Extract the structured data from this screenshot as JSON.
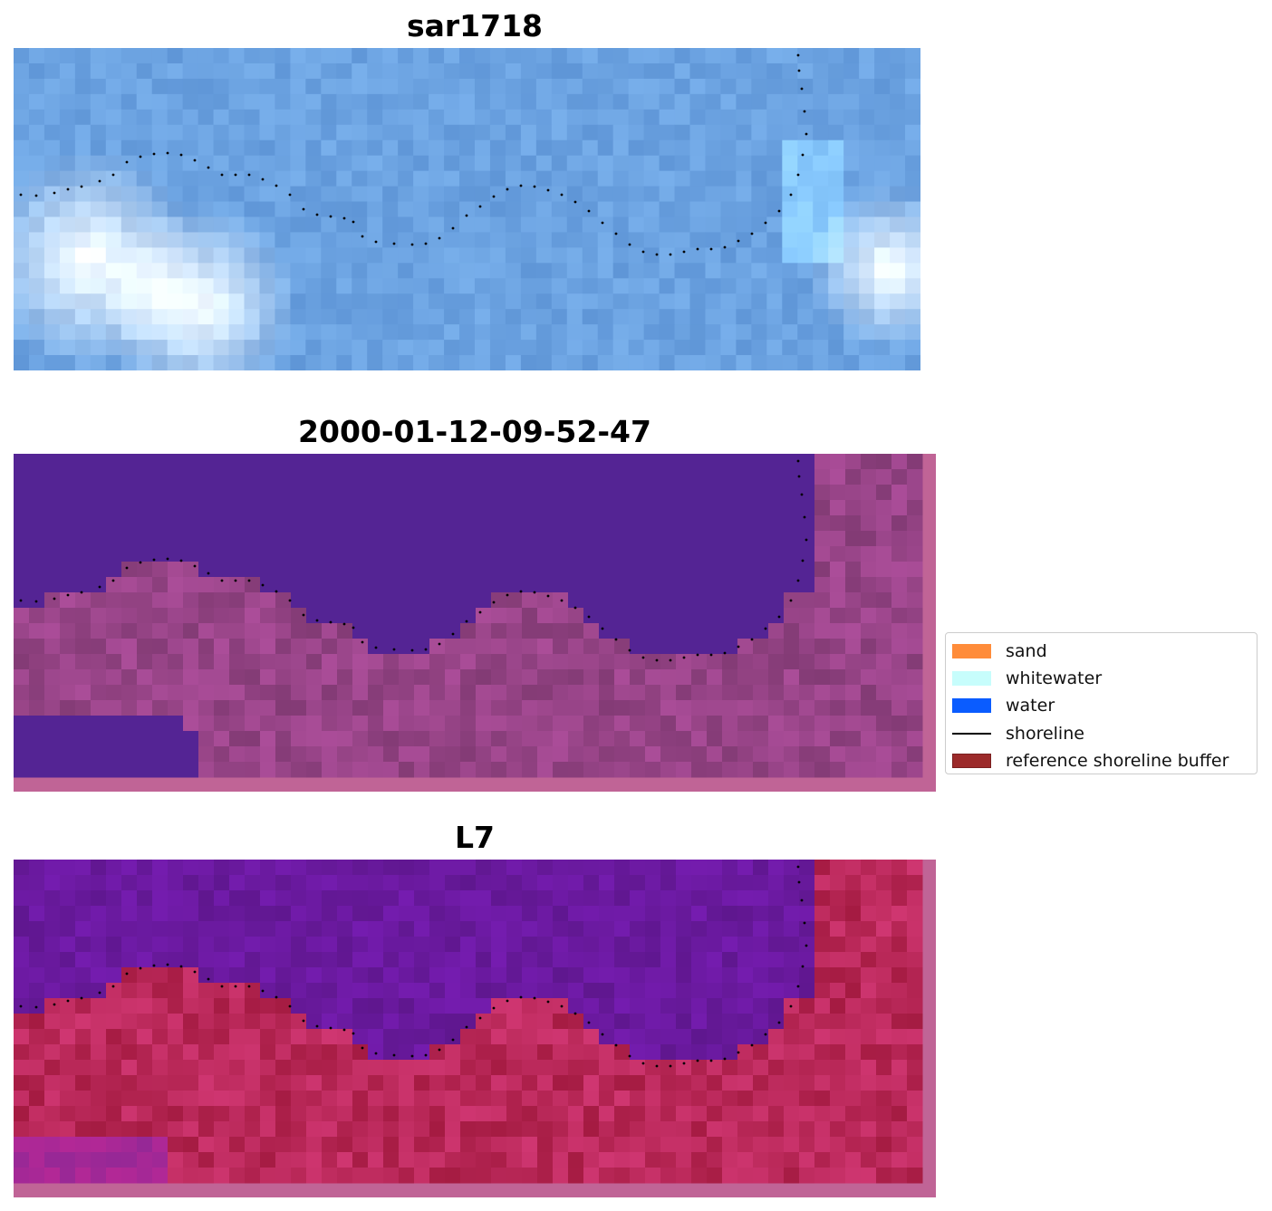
{
  "panels": [
    {
      "title": "sar1718",
      "kind": "rgb"
    },
    {
      "title": "2000-01-12-09-52-47",
      "kind": "classified"
    },
    {
      "title": "L7",
      "kind": "index"
    }
  ],
  "legend": {
    "items": [
      {
        "label": "sand",
        "color": "#ff8c3a",
        "type": "patch"
      },
      {
        "label": "whitewater",
        "color": "#c7fdfc",
        "type": "patch"
      },
      {
        "label": "water",
        "color": "#0a5cff",
        "type": "patch"
      },
      {
        "label": "shoreline",
        "color": "#000000",
        "type": "line"
      },
      {
        "label": "reference shoreline buffer",
        "color": "#9c2a2a",
        "type": "buffer"
      }
    ]
  },
  "colors": {
    "rgb_water": "#5f9fe0",
    "classified_water": "#542494",
    "classified_land": "#a0488f",
    "index_water": "#6c1aa2",
    "index_land": "#c2204e",
    "border_pink": "#c06496"
  }
}
